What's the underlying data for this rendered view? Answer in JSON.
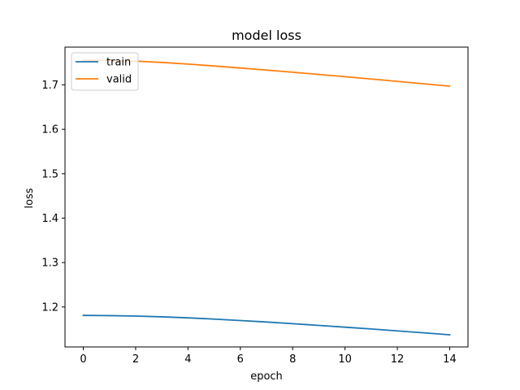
{
  "chart_data": {
    "type": "line",
    "title": "model loss",
    "xlabel": "epoch",
    "ylabel": "loss",
    "xlim": [
      -0.7,
      14.7
    ],
    "ylim": [
      1.11,
      1.785
    ],
    "xticks": [
      0,
      2,
      4,
      6,
      8,
      10,
      12,
      14
    ],
    "yticks": [
      1.2,
      1.3,
      1.4,
      1.5,
      1.6,
      1.7
    ],
    "x": [
      0,
      1,
      2,
      3,
      4,
      5,
      6,
      7,
      8,
      9,
      10,
      11,
      12,
      13,
      14
    ],
    "series": [
      {
        "name": "train",
        "color": "#1f77b4",
        "values": [
          1.181,
          1.1805,
          1.1795,
          1.1778,
          1.1755,
          1.1727,
          1.1695,
          1.1661,
          1.1624,
          1.1585,
          1.1545,
          1.1504,
          1.1461,
          1.1418,
          1.1373
        ]
      },
      {
        "name": "valid",
        "color": "#ff7f0e",
        "values": [
          1.7553,
          1.755,
          1.7535,
          1.7506,
          1.7468,
          1.7426,
          1.738,
          1.7333,
          1.7285,
          1.7235,
          1.7184,
          1.7132,
          1.7079,
          1.7025,
          1.6971
        ]
      }
    ],
    "legend": {
      "location": "top-left"
    },
    "grid": false
  }
}
